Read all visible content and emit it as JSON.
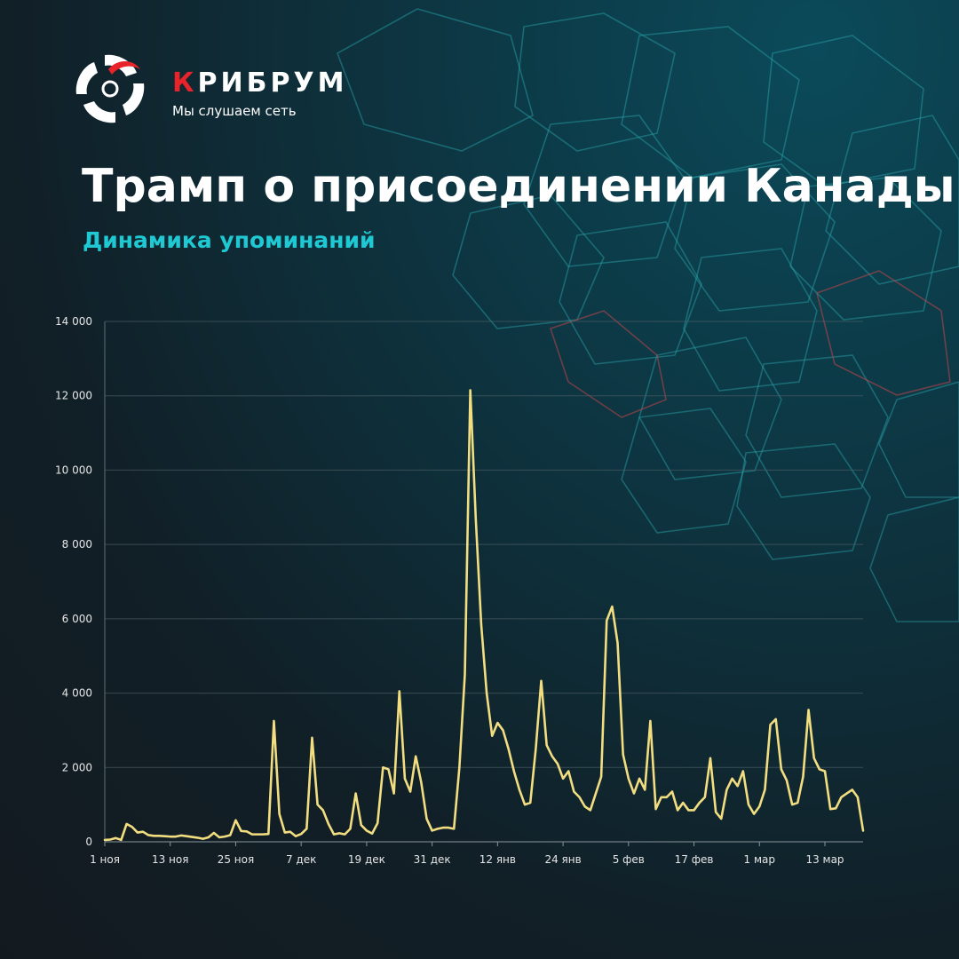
{
  "brand": {
    "first_letter": "К",
    "rest": "РИБРУМ",
    "tagline": "Мы слушаем сеть"
  },
  "header": {
    "title": "Трамп о присоединении Канады",
    "subtitle": "Динамика упоминаний"
  },
  "colors": {
    "line": "#f2de80",
    "accent": "#1ec9d4",
    "brand_red": "#e8232a"
  },
  "chart_data": {
    "type": "line",
    "title": "Трамп о присоединении Канады",
    "subtitle": "Динамика упоминаний",
    "x_start": "1 ноя",
    "x_end": "20 мар",
    "ylim": [
      0,
      14000
    ],
    "y_ticks": [
      0,
      2000,
      4000,
      6000,
      8000,
      10000,
      12000,
      14000
    ],
    "y_tick_labels": [
      "0",
      "2 000",
      "4 000",
      "6 000",
      "8 000",
      "10 000",
      "12 000",
      "14 000"
    ],
    "x_tick_labels": [
      {
        "day": 0,
        "label": "1 ноя"
      },
      {
        "day": 12,
        "label": "13 ноя"
      },
      {
        "day": 24,
        "label": "25 ноя"
      },
      {
        "day": 36,
        "label": "7 дек"
      },
      {
        "day": 48,
        "label": "19 дек"
      },
      {
        "day": 60,
        "label": "31 дек"
      },
      {
        "day": 72,
        "label": "12 янв"
      },
      {
        "day": 84,
        "label": "24 янв"
      },
      {
        "day": 96,
        "label": "5 фев"
      },
      {
        "day": 108,
        "label": "17 фев"
      },
      {
        "day": 120,
        "label": "1 мар"
      },
      {
        "day": 132,
        "label": "13 мар"
      }
    ],
    "grid": true,
    "series": [
      {
        "name": "",
        "values": [
          50,
          60,
          100,
          50,
          480,
          400,
          250,
          270,
          180,
          160,
          160,
          150,
          140,
          140,
          170,
          150,
          130,
          110,
          80,
          120,
          240,
          120,
          140,
          180,
          580,
          290,
          280,
          200,
          200,
          200,
          210,
          3250,
          750,
          250,
          270,
          150,
          210,
          350,
          2800,
          1000,
          850,
          480,
          200,
          230,
          200,
          350,
          1300,
          450,
          300,
          220,
          500,
          2000,
          1950,
          1300,
          4050,
          1700,
          1350,
          2300,
          1600,
          620,
          300,
          350,
          380,
          380,
          350,
          2000,
          4500,
          12150,
          8700,
          5850,
          4000,
          2850,
          3200,
          3000,
          2500,
          1900,
          1400,
          1000,
          1050,
          2500,
          4330,
          2600,
          2300,
          2100,
          1700,
          1900,
          1350,
          1200,
          950,
          850,
          1300,
          1750,
          5950,
          6330,
          5350,
          2350,
          1700,
          1300,
          1700,
          1400,
          3250,
          880,
          1200,
          1200,
          1350,
          850,
          1050,
          850,
          850,
          1050,
          1200,
          2250,
          800,
          620,
          1400,
          1700,
          1500,
          1900,
          1000,
          750,
          950,
          1400,
          3150,
          3300,
          1950,
          1650,
          1000,
          1050,
          1750,
          3550,
          2250,
          1950,
          1900,
          880,
          900,
          1200,
          1300,
          1400,
          1200,
          300
        ]
      }
    ]
  }
}
